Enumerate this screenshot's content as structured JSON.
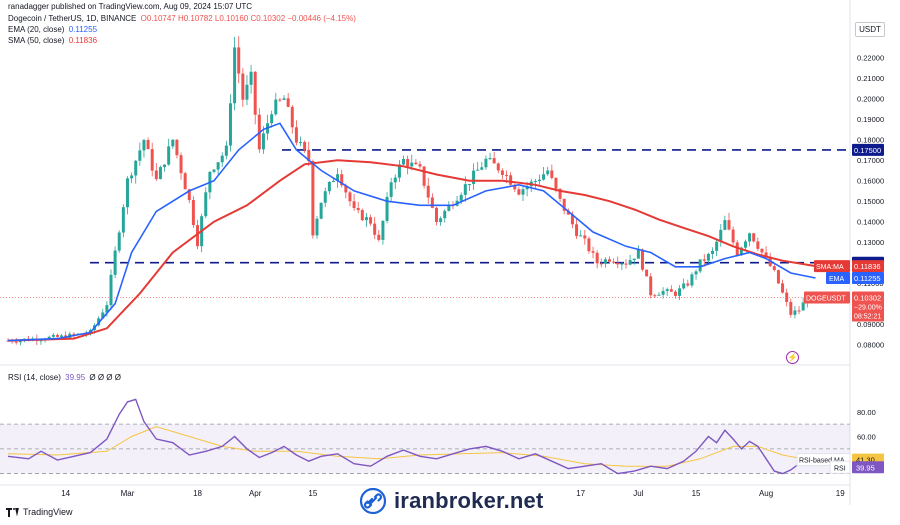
{
  "header": {
    "author": "ranadagger published on TradingView.com, Aug 09, 2024 15:07 UTC",
    "symbol": "Dogecoin / TetherUS, 1D, BINANCE",
    "ohlc": "O0.10747 H0.10782 L0.10160 C0.10302 −0.00446 (−4.15%)",
    "ema_label": "EMA (20, close)",
    "ema_value": "0.11255",
    "sma_label": "SMA (50, close)",
    "sma_value": "0.11836",
    "rsi_label": "RSI (14, close)",
    "rsi_value": "39.95",
    "rsi_extra": "Ø Ø Ø Ø"
  },
  "currency": "USDT",
  "footer": {
    "brand": "TradingView",
    "watermark": "iranbroker.net",
    "watermark_icon": "link-icon"
  },
  "colors": {
    "up": "#26a69a",
    "down": "#ef5350",
    "ema": "#2962ff",
    "sma": "#e53935",
    "rsi": "#7e57c2",
    "rsi_ma": "#f5c542",
    "line": "#0d1b8c"
  },
  "chart_data": {
    "type": "candlestick",
    "x_ticks": [
      {
        "label": "14",
        "day": 14
      },
      {
        "label": "Mar",
        "day": 29
      },
      {
        "label": "18",
        "day": 46
      },
      {
        "label": "Apr",
        "day": 60
      },
      {
        "label": "15",
        "day": 74
      },
      {
        "label": "17",
        "day": 139
      },
      {
        "label": "Jul",
        "day": 153
      },
      {
        "label": "15",
        "day": 167
      },
      {
        "label": "Aug",
        "day": 184
      },
      {
        "label": "19",
        "day": 202
      }
    ],
    "price_ticks": [
      "0.22000",
      "0.21000",
      "0.20000",
      "0.19000",
      "0.18000",
      "0.17000",
      "0.16000",
      "0.15000",
      "0.14000",
      "0.13000",
      "0.12000",
      "0.11000",
      "0.10000",
      "0.09000",
      "0.08000"
    ],
    "price_range": [
      0.075,
      0.2325
    ],
    "horizontal_lines": [
      0.175,
      0.12
    ],
    "labels": {
      "line_175": "0.17500",
      "line_120": "0.12000",
      "sma_ma": "SMA:MA",
      "sma_ma_val": "0.11836",
      "ema": "EMA",
      "ema_val": "0.11255",
      "symbol": "DOGEUSDT",
      "price_val": "0.10302",
      "change": "−29.00%",
      "countdown": "08:52:21"
    },
    "key_points": [
      [
        0,
        0.082
      ],
      [
        7,
        0.083
      ],
      [
        14,
        0.084
      ],
      [
        20,
        0.086
      ],
      [
        24,
        0.1
      ],
      [
        26,
        0.125
      ],
      [
        29,
        0.16
      ],
      [
        33,
        0.18
      ],
      [
        36,
        0.16
      ],
      [
        40,
        0.18
      ],
      [
        44,
        0.15
      ],
      [
        46,
        0.13
      ],
      [
        49,
        0.165
      ],
      [
        53,
        0.175
      ],
      [
        55,
        0.225
      ],
      [
        57,
        0.2
      ],
      [
        59,
        0.21
      ],
      [
        61,
        0.175
      ],
      [
        64,
        0.195
      ],
      [
        67,
        0.2
      ],
      [
        70,
        0.18
      ],
      [
        73,
        0.17
      ],
      [
        74,
        0.135
      ],
      [
        76,
        0.15
      ],
      [
        80,
        0.165
      ],
      [
        84,
        0.145
      ],
      [
        88,
        0.14
      ],
      [
        90,
        0.13
      ],
      [
        93,
        0.16
      ],
      [
        96,
        0.17
      ],
      [
        100,
        0.165
      ],
      [
        104,
        0.14
      ],
      [
        108,
        0.15
      ],
      [
        112,
        0.16
      ],
      [
        116,
        0.17
      ],
      [
        120,
        0.165
      ],
      [
        124,
        0.155
      ],
      [
        128,
        0.16
      ],
      [
        131,
        0.165
      ],
      [
        134,
        0.15
      ],
      [
        138,
        0.135
      ],
      [
        140,
        0.13
      ],
      [
        143,
        0.12
      ],
      [
        146,
        0.122
      ],
      [
        150,
        0.12
      ],
      [
        153,
        0.125
      ],
      [
        156,
        0.105
      ],
      [
        159,
        0.106
      ],
      [
        162,
        0.105
      ],
      [
        165,
        0.11
      ],
      [
        168,
        0.12
      ],
      [
        171,
        0.125
      ],
      [
        174,
        0.14
      ],
      [
        177,
        0.125
      ],
      [
        180,
        0.135
      ],
      [
        183,
        0.125
      ],
      [
        186,
        0.115
      ],
      [
        188,
        0.105
      ],
      [
        190,
        0.095
      ],
      [
        192,
        0.097
      ],
      [
        194,
        0.103
      ]
    ],
    "ema_points": [
      [
        0,
        0.082
      ],
      [
        12,
        0.083
      ],
      [
        20,
        0.086
      ],
      [
        26,
        0.1
      ],
      [
        30,
        0.125
      ],
      [
        36,
        0.145
      ],
      [
        44,
        0.155
      ],
      [
        50,
        0.16
      ],
      [
        56,
        0.175
      ],
      [
        62,
        0.185
      ],
      [
        66,
        0.188
      ],
      [
        70,
        0.175
      ],
      [
        76,
        0.165
      ],
      [
        84,
        0.155
      ],
      [
        92,
        0.15
      ],
      [
        100,
        0.148
      ],
      [
        108,
        0.148
      ],
      [
        116,
        0.155
      ],
      [
        124,
        0.158
      ],
      [
        130,
        0.155
      ],
      [
        136,
        0.145
      ],
      [
        142,
        0.135
      ],
      [
        150,
        0.128
      ],
      [
        156,
        0.125
      ],
      [
        162,
        0.118
      ],
      [
        168,
        0.118
      ],
      [
        174,
        0.122
      ],
      [
        180,
        0.125
      ],
      [
        184,
        0.122
      ],
      [
        190,
        0.115
      ],
      [
        196,
        0.11255
      ]
    ],
    "sma_points": [
      [
        0,
        0.082
      ],
      [
        16,
        0.083
      ],
      [
        24,
        0.088
      ],
      [
        32,
        0.105
      ],
      [
        40,
        0.125
      ],
      [
        50,
        0.14
      ],
      [
        58,
        0.148
      ],
      [
        66,
        0.16
      ],
      [
        72,
        0.168
      ],
      [
        80,
        0.17
      ],
      [
        88,
        0.169
      ],
      [
        96,
        0.167
      ],
      [
        104,
        0.163
      ],
      [
        112,
        0.16
      ],
      [
        120,
        0.16
      ],
      [
        128,
        0.158
      ],
      [
        134,
        0.155
      ],
      [
        140,
        0.153
      ],
      [
        146,
        0.15
      ],
      [
        152,
        0.146
      ],
      [
        158,
        0.141
      ],
      [
        164,
        0.137
      ],
      [
        170,
        0.133
      ],
      [
        176,
        0.128
      ],
      [
        182,
        0.124
      ],
      [
        188,
        0.121
      ],
      [
        196,
        0.11836
      ]
    ],
    "rsi_ticks": [
      "80.00",
      "60.00",
      "40.00"
    ],
    "rsi_range": [
      24,
      96
    ],
    "rsi_bands": [
      70,
      50,
      30
    ],
    "rsi_labels": {
      "rsi_ma": "RSI-based MA",
      "rsi_ma_val": "41.30",
      "rsi": "RSI",
      "rsi_val": "39.95"
    },
    "rsi_points": [
      [
        0,
        44
      ],
      [
        5,
        42
      ],
      [
        8,
        48
      ],
      [
        12,
        41
      ],
      [
        16,
        44
      ],
      [
        20,
        47
      ],
      [
        24,
        58
      ],
      [
        27,
        78
      ],
      [
        29,
        88
      ],
      [
        31,
        90
      ],
      [
        33,
        72
      ],
      [
        36,
        58
      ],
      [
        40,
        55
      ],
      [
        44,
        45
      ],
      [
        48,
        48
      ],
      [
        52,
        52
      ],
      [
        55,
        60
      ],
      [
        58,
        50
      ],
      [
        61,
        43
      ],
      [
        64,
        47
      ],
      [
        67,
        52
      ],
      [
        70,
        45
      ],
      [
        73,
        40
      ],
      [
        76,
        44
      ],
      [
        80,
        46
      ],
      [
        84,
        38
      ],
      [
        88,
        36
      ],
      [
        92,
        44
      ],
      [
        96,
        49
      ],
      [
        100,
        44
      ],
      [
        104,
        42
      ],
      [
        108,
        46
      ],
      [
        112,
        50
      ],
      [
        116,
        52
      ],
      [
        120,
        48
      ],
      [
        124,
        42
      ],
      [
        128,
        46
      ],
      [
        132,
        40
      ],
      [
        136,
        34
      ],
      [
        140,
        36
      ],
      [
        144,
        38
      ],
      [
        148,
        30
      ],
      [
        152,
        32
      ],
      [
        156,
        36
      ],
      [
        160,
        34
      ],
      [
        164,
        40
      ],
      [
        167,
        48
      ],
      [
        170,
        60
      ],
      [
        172,
        55
      ],
      [
        174,
        65
      ],
      [
        176,
        58
      ],
      [
        178,
        50
      ],
      [
        180,
        56
      ],
      [
        182,
        52
      ],
      [
        184,
        42
      ],
      [
        186,
        32
      ],
      [
        188,
        30
      ],
      [
        190,
        33
      ],
      [
        192,
        38
      ],
      [
        194,
        39.95
      ]
    ],
    "rsi_ma_points": [
      [
        0,
        46
      ],
      [
        12,
        45
      ],
      [
        24,
        48
      ],
      [
        30,
        60
      ],
      [
        36,
        68
      ],
      [
        44,
        60
      ],
      [
        52,
        52
      ],
      [
        60,
        48
      ],
      [
        70,
        48
      ],
      [
        80,
        44
      ],
      [
        90,
        42
      ],
      [
        100,
        45
      ],
      [
        110,
        46
      ],
      [
        120,
        47
      ],
      [
        130,
        44
      ],
      [
        140,
        38
      ],
      [
        150,
        36
      ],
      [
        160,
        36
      ],
      [
        168,
        42
      ],
      [
        176,
        52
      ],
      [
        182,
        52
      ],
      [
        188,
        45
      ],
      [
        194,
        41.3
      ]
    ]
  }
}
